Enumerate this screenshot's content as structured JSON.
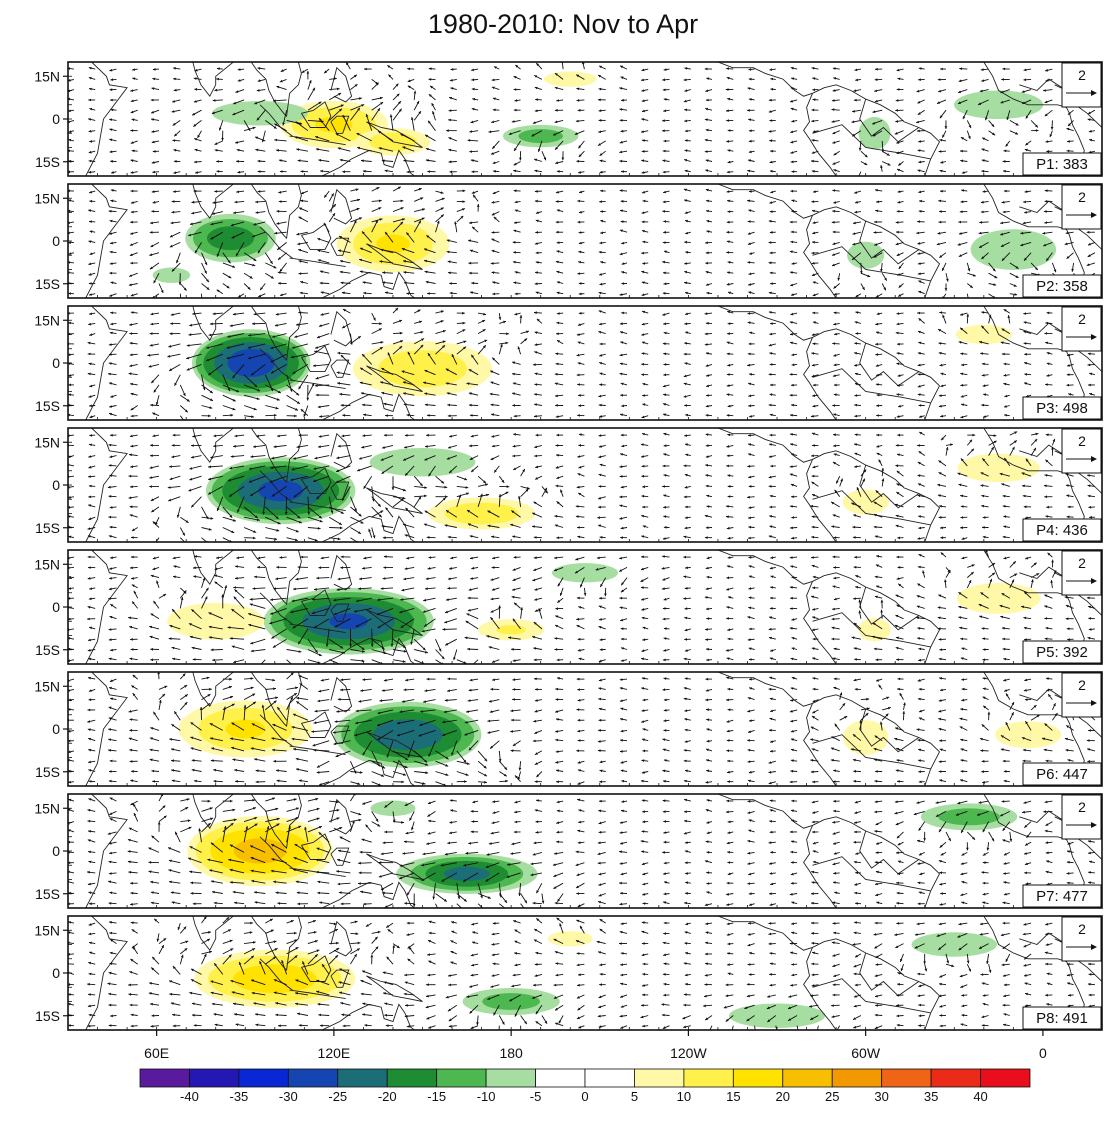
{
  "chart_data": {
    "type": "heatmap",
    "title": "1980-2010: Nov to Apr",
    "x_ticks": [
      "60E",
      "120E",
      "180",
      "120W",
      "60W",
      "0"
    ],
    "y_ticks": [
      "15N",
      "0",
      "15S"
    ],
    "reference_vector": "2",
    "panels": [
      {
        "label": "P1: 383",
        "blobs": [
          {
            "lon": 120,
            "lat": -2,
            "rlon": 22,
            "rlat": 10,
            "v": 15
          },
          {
            "lon": 140,
            "lat": -8,
            "rlon": 15,
            "rlat": 6,
            "v": 13
          },
          {
            "lon": 200,
            "lat": 14,
            "rlon": 14,
            "rlat": 4,
            "v": 8
          },
          {
            "lon": 95,
            "lat": 2,
            "rlon": 22,
            "rlat": 6,
            "v": -9
          },
          {
            "lon": 190,
            "lat": -6,
            "rlon": 16,
            "rlat": 5,
            "v": -12
          },
          {
            "lon": 303,
            "lat": -5,
            "rlon": 8,
            "rlat": 8,
            "v": -9
          },
          {
            "lon": 345,
            "lat": 5,
            "rlon": 20,
            "rlat": 7,
            "v": -9
          }
        ]
      },
      {
        "label": "P2: 358",
        "blobs": [
          {
            "lon": 85,
            "lat": 1,
            "rlon": 18,
            "rlat": 10,
            "v": -17
          },
          {
            "lon": 140,
            "lat": -1,
            "rlon": 22,
            "rlat": 12,
            "v": 15
          },
          {
            "lon": 65,
            "lat": -12,
            "rlon": 10,
            "rlat": 4,
            "v": -8
          },
          {
            "lon": 300,
            "lat": -5,
            "rlon": 9,
            "rlat": 7,
            "v": -8
          },
          {
            "lon": 350,
            "lat": -3,
            "rlon": 20,
            "rlat": 10,
            "v": -9
          }
        ]
      },
      {
        "label": "P3: 498",
        "blobs": [
          {
            "lon": 92,
            "lat": 0,
            "rlon": 22,
            "rlat": 13,
            "v": -28
          },
          {
            "lon": 150,
            "lat": -2,
            "rlon": 28,
            "rlat": 12,
            "v": 13
          },
          {
            "lon": 340,
            "lat": 10,
            "rlon": 15,
            "rlat": 5,
            "v": 8
          }
        ]
      },
      {
        "label": "P4: 436",
        "blobs": [
          {
            "lon": 102,
            "lat": -2,
            "rlon": 28,
            "rlat": 13,
            "v": -26
          },
          {
            "lon": 150,
            "lat": 8,
            "rlon": 24,
            "rlat": 7,
            "v": -9
          },
          {
            "lon": 170,
            "lat": -10,
            "rlon": 24,
            "rlat": 7,
            "v": 13
          },
          {
            "lon": 300,
            "lat": -6,
            "rlon": 12,
            "rlat": 7,
            "v": 7
          },
          {
            "lon": 345,
            "lat": 6,
            "rlon": 22,
            "rlat": 8,
            "v": 7
          }
        ]
      },
      {
        "label": "P5: 392",
        "blobs": [
          {
            "lon": 125,
            "lat": -5,
            "rlon": 32,
            "rlat": 13,
            "v": -25
          },
          {
            "lon": 80,
            "lat": -5,
            "rlon": 22,
            "rlat": 9,
            "v": 9
          },
          {
            "lon": 180,
            "lat": -8,
            "rlon": 16,
            "rlat": 5,
            "v": 10
          },
          {
            "lon": 205,
            "lat": 12,
            "rlon": 16,
            "rlat": 5,
            "v": -8
          },
          {
            "lon": 303,
            "lat": -8,
            "rlon": 8,
            "rlat": 6,
            "v": 8
          },
          {
            "lon": 345,
            "lat": 3,
            "rlon": 22,
            "rlat": 8,
            "v": 8
          }
        ]
      },
      {
        "label": "P6: 447",
        "blobs": [
          {
            "lon": 145,
            "lat": -2,
            "rlon": 28,
            "rlat": 13,
            "v": -23
          },
          {
            "lon": 90,
            "lat": 0,
            "rlon": 26,
            "rlat": 12,
            "v": 15
          },
          {
            "lon": 300,
            "lat": -3,
            "rlon": 12,
            "rlat": 9,
            "v": 8
          },
          {
            "lon": 355,
            "lat": -2,
            "rlon": 16,
            "rlat": 7,
            "v": 8
          }
        ]
      },
      {
        "label": "P7: 477",
        "blobs": [
          {
            "lon": 95,
            "lat": 0,
            "rlon": 28,
            "rlat": 14,
            "v": 21
          },
          {
            "lon": 165,
            "lat": -8,
            "rlon": 26,
            "rlat": 8,
            "v": -21
          },
          {
            "lon": 140,
            "lat": 15,
            "rlon": 12,
            "rlat": 4,
            "v": -8
          },
          {
            "lon": 335,
            "lat": 12,
            "rlon": 20,
            "rlat": 6,
            "v": -12
          }
        ]
      },
      {
        "label": "P8: 491",
        "blobs": [
          {
            "lon": 100,
            "lat": -2,
            "rlon": 32,
            "rlat": 12,
            "v": 17
          },
          {
            "lon": 180,
            "lat": -10,
            "rlon": 20,
            "rlat": 6,
            "v": -12
          },
          {
            "lon": 200,
            "lat": 12,
            "rlon": 12,
            "rlat": 4,
            "v": 8
          },
          {
            "lon": 270,
            "lat": -15,
            "rlon": 22,
            "rlat": 6,
            "v": -9
          },
          {
            "lon": 330,
            "lat": 10,
            "rlon": 20,
            "rlat": 6,
            "v": -9
          }
        ]
      }
    ],
    "colorbar": {
      "labels": [
        "-40",
        "-35",
        "-30",
        "-25",
        "-20",
        "-15",
        "-10",
        "-5",
        "0",
        "5",
        "10",
        "15",
        "20",
        "25",
        "30",
        "35",
        "40"
      ],
      "colors": [
        "#5a1a9e",
        "#2418b3",
        "#0828d6",
        "#1545b0",
        "#1b6e78",
        "#1e8c32",
        "#4db84f",
        "#a5dea0",
        "#ffffff",
        "#ffffff",
        "#fff8a6",
        "#fff04a",
        "#ffe200",
        "#f7bf00",
        "#f29800",
        "#f06418",
        "#eb2a18",
        "#e80e1c"
      ]
    }
  }
}
